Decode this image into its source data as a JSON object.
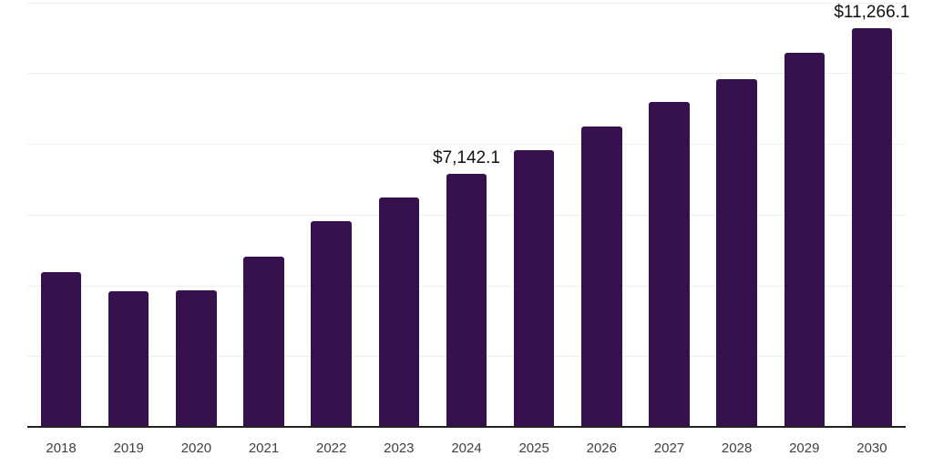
{
  "chart": {
    "background_color": "#ffffff",
    "bar_color": "#36114d",
    "grid_color": "#f0f0f0",
    "axis_color": "#222222",
    "tick_label_color": "#404040",
    "value_label_color": "#111111"
  },
  "chart_data": {
    "type": "bar",
    "title": "",
    "xlabel": "",
    "ylabel": "",
    "categories": [
      "2018",
      "2019",
      "2020",
      "2021",
      "2022",
      "2023",
      "2024",
      "2025",
      "2026",
      "2027",
      "2028",
      "2029",
      "2030"
    ],
    "values": [
      4370,
      3835,
      3860,
      4810,
      5815,
      6480,
      7142.1,
      7820,
      8490,
      9180,
      9825,
      10570,
      11266.1
    ],
    "point_labels": [
      "",
      "",
      "",
      "",
      "",
      "",
      "$7,142.1",
      "",
      "",
      "",
      "",
      "",
      "$11,266.1"
    ],
    "ylim": [
      0,
      12000
    ],
    "gridline_step": 2000,
    "grid": true,
    "legend_position": "none",
    "y_axis_labels_visible": false
  }
}
